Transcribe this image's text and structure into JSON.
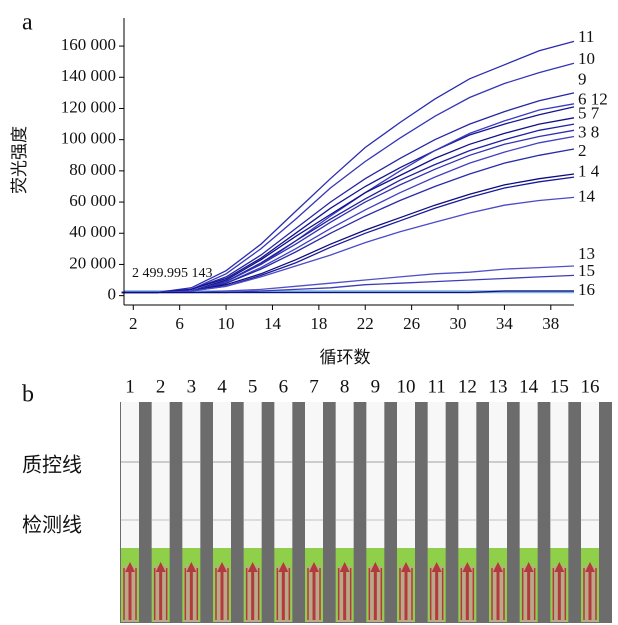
{
  "chart_data": {
    "type": "line",
    "panel_label": "a",
    "xlabel": "循环数",
    "ylabel": "荧光强度",
    "x": [
      1,
      4,
      7,
      10,
      13,
      16,
      19,
      22,
      25,
      28,
      31,
      34,
      37,
      40
    ],
    "xlim": [
      1.2,
      40
    ],
    "xticks": [
      2,
      6,
      10,
      14,
      18,
      22,
      26,
      30,
      34,
      38
    ],
    "ylim": [
      -6000,
      178000
    ],
    "yticks": [
      0,
      {
        "value": 20000,
        "label": "20 000"
      },
      {
        "value": 40000,
        "label": "40 000"
      },
      {
        "value": 60000,
        "label": "60 000"
      },
      {
        "value": 80000,
        "label": "80 000"
      },
      {
        "value": 100000,
        "label": "100 000"
      },
      {
        "value": 120000,
        "label": "120 000"
      },
      {
        "value": 140000,
        "label": "140 000"
      },
      {
        "value": 160000,
        "label": "160 000"
      }
    ],
    "grid": false,
    "threshold": {
      "value": 2499.995143,
      "label": "2 499.995 143",
      "color": "#7fb2e8"
    },
    "series": [
      {
        "color": "#2b2bb0",
        "values": [
          2000,
          2000,
          5000,
          16000,
          33000,
          54000,
          75000,
          95000,
          111000,
          126000,
          139000,
          148000,
          157000,
          163000
        ]
      },
      {
        "color": "#3535b8",
        "values": [
          2000,
          2000,
          4000,
          14000,
          30000,
          49000,
          69000,
          86000,
          101000,
          115000,
          127000,
          136000,
          143000,
          149000
        ]
      },
      {
        "color": "#2626a4",
        "values": [
          2000,
          2000,
          4000,
          12000,
          26000,
          43000,
          60000,
          75000,
          88000,
          100000,
          110000,
          118000,
          125000,
          130000
        ]
      },
      {
        "color": "#141490",
        "values": [
          2000,
          2000,
          4000,
          11000,
          24000,
          40000,
          56000,
          70000,
          82000,
          93000,
          103000,
          110000,
          116000,
          121000
        ]
      },
      {
        "color": "#3a3ac0",
        "values": [
          2000,
          2000,
          3000,
          9000,
          20000,
          35000,
          51000,
          66000,
          80000,
          93000,
          104000,
          112000,
          119000,
          123000
        ]
      },
      {
        "color": "#101088",
        "values": [
          2000,
          2000,
          3000,
          10000,
          23000,
          38000,
          52000,
          66000,
          77000,
          88000,
          97000,
          104000,
          110000,
          114000
        ]
      },
      {
        "color": "#2020a0",
        "values": [
          2000,
          2000,
          3000,
          9000,
          21000,
          35000,
          49000,
          62000,
          74000,
          84000,
          93000,
          100000,
          106000,
          110000
        ]
      },
      {
        "color": "#3030b0",
        "values": [
          2000,
          2000,
          3000,
          9000,
          20000,
          33000,
          47000,
          60000,
          71000,
          81000,
          90000,
          97000,
          102000,
          106000
        ]
      },
      {
        "color": "#4040c0",
        "values": [
          2000,
          2000,
          3000,
          8000,
          18000,
          30000,
          43000,
          55000,
          66000,
          76000,
          85000,
          92000,
          98000,
          102000
        ]
      },
      {
        "color": "#2a2aa8",
        "values": [
          2000,
          2000,
          3000,
          8000,
          17000,
          28000,
          40000,
          51000,
          61000,
          70000,
          78000,
          85000,
          90000,
          94000
        ]
      },
      {
        "color": "#0c0c80",
        "values": [
          2000,
          2000,
          3000,
          7000,
          14000,
          23000,
          33000,
          42000,
          50000,
          58000,
          65000,
          71000,
          75000,
          78000
        ]
      },
      {
        "color": "#1a1a98",
        "values": [
          2000,
          2000,
          3000,
          6000,
          13000,
          21000,
          31000,
          40000,
          48000,
          56000,
          63000,
          69000,
          73000,
          76000
        ]
      },
      {
        "color": "#4a4ac8",
        "values": [
          2000,
          2000,
          3000,
          6000,
          12000,
          19000,
          26000,
          34000,
          41000,
          47000,
          53000,
          58000,
          61000,
          63000
        ]
      },
      {
        "color": "#5050c8",
        "values": [
          2000,
          2000,
          2000,
          3000,
          4000,
          6000,
          8000,
          10000,
          12000,
          14000,
          15000,
          17000,
          18000,
          19000
        ]
      },
      {
        "color": "#3c3cb8",
        "values": [
          2000,
          2000,
          2000,
          2000,
          3000,
          4000,
          5000,
          7000,
          8000,
          9000,
          10000,
          11000,
          12000,
          13000
        ]
      },
      {
        "color": "#101078",
        "values": [
          2000,
          2000,
          2000,
          2000,
          2000,
          2000,
          2000,
          2000,
          2000,
          2000,
          2000,
          3000,
          3000,
          3000
        ]
      }
    ],
    "curve_labels": [
      {
        "label": "11",
        "value": 165000
      },
      {
        "label": "10",
        "value": 151000
      },
      {
        "label": "9",
        "value": 138000
      },
      {
        "label": "6 12",
        "value": 125000
      },
      {
        "label": "5 7",
        "value": 116000
      },
      {
        "label": "3 8",
        "value": 104000
      },
      {
        "label": "2",
        "value": 92000
      },
      {
        "label": "1 4",
        "value": 79000
      },
      {
        "label": "14",
        "value": 63000
      },
      {
        "label": "13",
        "value": 26000
      },
      {
        "label": "15",
        "value": 15000
      },
      {
        "label": "16",
        "value": 3000
      }
    ]
  },
  "strips": {
    "panel_label": "b",
    "control_line_label": "质控线",
    "test_line_label": "检测线",
    "lanes": [
      "1",
      "2",
      "3",
      "4",
      "5",
      "6",
      "7",
      "8",
      "9",
      "10",
      "11",
      "12",
      "13",
      "14",
      "15",
      "16"
    ]
  }
}
